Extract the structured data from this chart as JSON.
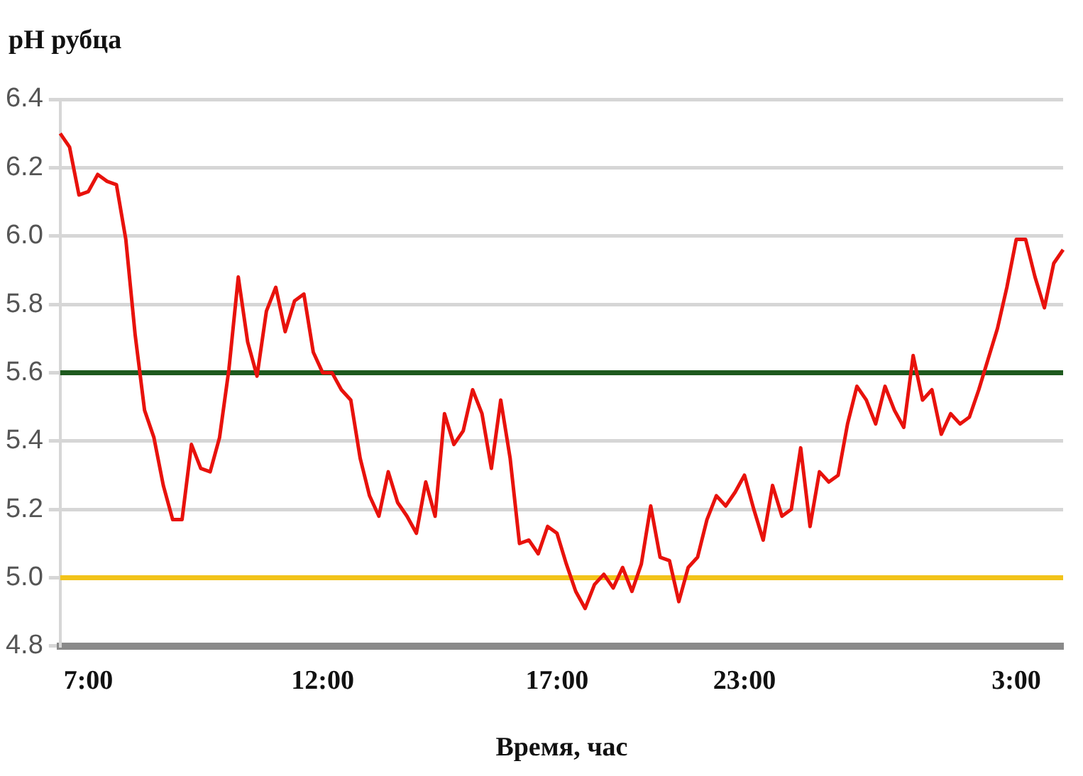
{
  "chart_data": {
    "type": "line",
    "xlabel": "Время, час",
    "ylabel": "pH рубца",
    "categories": [
      null,
      null,
      null,
      "7:00",
      null,
      null,
      null,
      null,
      null,
      null,
      null,
      null,
      null,
      null,
      null,
      null,
      null,
      null,
      null,
      null,
      null,
      null,
      null,
      null,
      null,
      null,
      null,
      null,
      "12:00",
      null,
      null,
      null,
      null,
      null,
      null,
      null,
      null,
      null,
      null,
      null,
      null,
      null,
      null,
      null,
      null,
      null,
      null,
      null,
      null,
      null,
      null,
      null,
      null,
      "17:00",
      null,
      null,
      null,
      null,
      null,
      null,
      null,
      null,
      null,
      null,
      null,
      null,
      null,
      null,
      null,
      null,
      null,
      null,
      null,
      "23:00",
      null,
      null,
      null,
      null,
      null,
      null,
      null,
      null,
      null,
      null,
      null,
      null,
      null,
      null,
      null,
      null,
      null,
      null,
      null,
      null,
      null,
      null,
      null,
      null,
      null,
      null,
      null,
      null,
      "3:00",
      null,
      null,
      null,
      null,
      null
    ],
    "series": [
      {
        "color": "#e8120c",
        "values": [
          6.3,
          6.26,
          6.12,
          6.13,
          6.18,
          6.16,
          6.15,
          5.99,
          5.71,
          5.49,
          5.41,
          5.27,
          5.17,
          5.17,
          5.39,
          5.32,
          5.31,
          5.41,
          5.61,
          5.88,
          5.69,
          5.59,
          5.78,
          5.85,
          5.72,
          5.81,
          5.83,
          5.66,
          5.6,
          5.6,
          5.55,
          5.52,
          5.35,
          5.24,
          5.18,
          5.31,
          5.22,
          5.18,
          5.13,
          5.28,
          5.18,
          5.48,
          5.39,
          5.43,
          5.55,
          5.48,
          5.32,
          5.52,
          5.35,
          5.1,
          5.11,
          5.07,
          5.15,
          5.13,
          5.04,
          4.96,
          4.91,
          4.98,
          5.01,
          4.97,
          5.03,
          4.96,
          5.04,
          5.21,
          5.06,
          5.05,
          4.93,
          5.03,
          5.06,
          5.17,
          5.24,
          5.21,
          5.25,
          5.3,
          5.2,
          5.11,
          5.27,
          5.18,
          5.2,
          5.38,
          5.15,
          5.31,
          5.28,
          5.3,
          5.45,
          5.56,
          5.52,
          5.45,
          5.56,
          5.49,
          5.44,
          5.65,
          5.52,
          5.55,
          5.42,
          5.48,
          5.45,
          5.47,
          5.55,
          5.64,
          5.73,
          5.85,
          5.99,
          5.99,
          5.88,
          5.79,
          5.92,
          5.96
        ]
      }
    ],
    "ylim": [
      4.8,
      6.4
    ],
    "yticks": [
      4.8,
      {
        "value": 5,
        "label": "5.0"
      },
      5.2,
      5.4,
      5.6,
      5.8,
      {
        "value": 6,
        "label": "6.0"
      },
      6.2,
      6.4
    ],
    "ref_lines": [
      {
        "axis": "y",
        "value": 5.6,
        "color": "#1e5a1e"
      },
      {
        "axis": "y",
        "value": 5,
        "color": "#f2c31a"
      }
    ],
    "grid": "y",
    "legend": false,
    "marker": "none",
    "line_style": "solid"
  }
}
